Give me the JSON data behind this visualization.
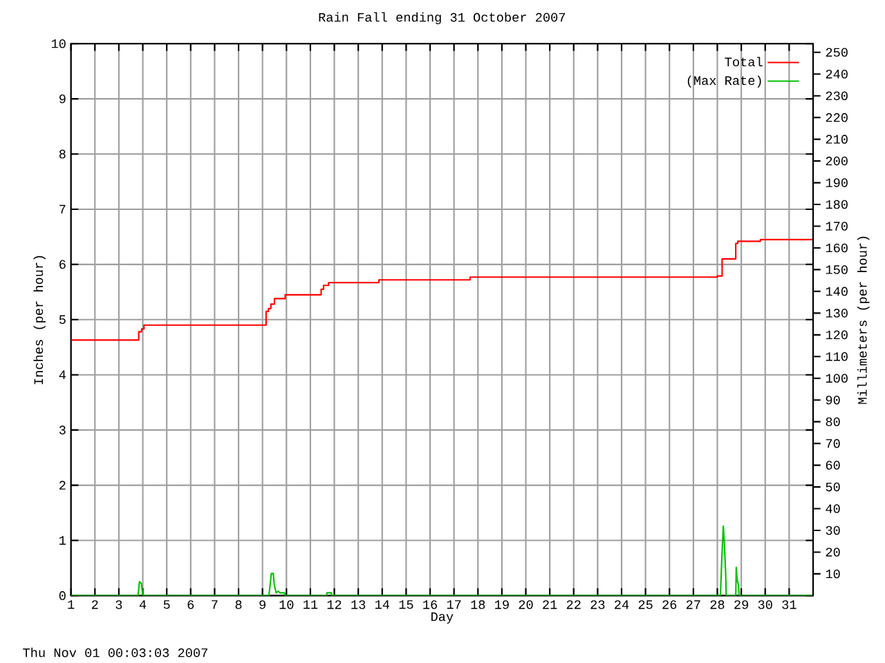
{
  "chart_data": {
    "type": "line",
    "title": "Rain Fall ending 31 October 2007",
    "xlabel": "Day",
    "ylabel": "Inches (per hour)",
    "y2label": "Millimeters (per hour)",
    "annotations": [
      "Thu Nov 01 00:03:03 2007"
    ],
    "xlim": [
      1,
      32
    ],
    "xticks": [
      1,
      2,
      3,
      4,
      5,
      6,
      7,
      8,
      9,
      10,
      11,
      12,
      13,
      14,
      15,
      16,
      17,
      18,
      19,
      20,
      21,
      22,
      23,
      24,
      25,
      26,
      27,
      28,
      29,
      30,
      31
    ],
    "ylim": [
      0,
      10
    ],
    "yticks": [
      0,
      1,
      2,
      3,
      4,
      5,
      6,
      7,
      8,
      9,
      10
    ],
    "y2lim": [
      0,
      254
    ],
    "y2ticks": [
      10,
      20,
      30,
      40,
      50,
      60,
      70,
      80,
      90,
      100,
      110,
      120,
      130,
      140,
      150,
      160,
      170,
      180,
      190,
      200,
      210,
      220,
      230,
      240,
      250
    ],
    "grid": true,
    "legend": "top right",
    "series": [
      {
        "name": "Total",
        "type": "step",
        "color": "#ff0000",
        "x": [
          1,
          3.83,
          3.95,
          4.05,
          9.15,
          9.25,
          9.35,
          9.5,
          9.95,
          11.45,
          11.55,
          11.76,
          13.86,
          17.67,
          28.0,
          28.2,
          28.77,
          28.85,
          29.8,
          32
        ],
        "values": [
          4.63,
          4.78,
          4.83,
          4.9,
          5.15,
          5.2,
          5.28,
          5.38,
          5.45,
          5.55,
          5.62,
          5.67,
          5.72,
          5.77,
          5.79,
          6.1,
          6.38,
          6.42,
          6.45,
          6.45
        ]
      },
      {
        "name": "(Max Rate)",
        "color": "#00c000",
        "x": [
          1,
          3.8,
          3.86,
          3.94,
          4.0,
          9.27,
          9.37,
          9.45,
          9.49,
          9.57,
          9.65,
          9.73,
          9.92,
          9.93,
          11.68,
          11.69,
          11.88,
          11.89,
          28.13,
          28.19,
          28.25,
          28.29,
          28.35,
          28.37,
          28.77,
          28.79,
          28.83,
          28.88,
          28.92,
          32
        ],
        "values": [
          0,
          0,
          0.25,
          0.22,
          0,
          0,
          0.4,
          0.4,
          0.2,
          0.05,
          0.08,
          0.05,
          0.05,
          0,
          0,
          0.05,
          0.05,
          0,
          0,
          0.71,
          1.26,
          0.98,
          0.39,
          0,
          0,
          0.51,
          0.28,
          0.2,
          0,
          0
        ]
      }
    ]
  }
}
